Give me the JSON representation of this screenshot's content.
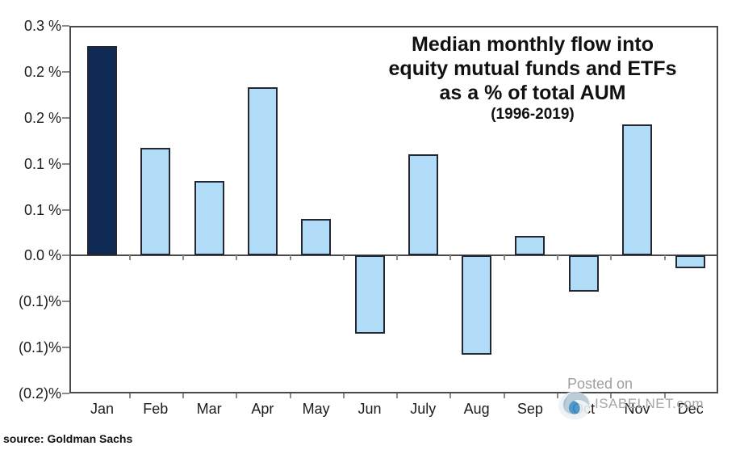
{
  "title": {
    "line1": "Median monthly flow into",
    "line2": "equity mutual funds and ETFs",
    "line3": "as a % of total AUM",
    "line4": "(1996-2019)"
  },
  "watermark": {
    "posted_on": "Posted on",
    "site": "ISABELNET.com",
    "logo": "isabelnet-swirl-logo"
  },
  "source": "source: Goldman Sachs",
  "colors": {
    "highlight_bar": "#0e2a55",
    "bar_fill": "#b0dcf8",
    "bar_border": "#222733",
    "frame": "#4a4a4a",
    "text": "#1c1c1c",
    "watermark_gray": "#a6a6a6"
  },
  "chart_data": {
    "type": "bar",
    "title": "Median monthly flow into equity mutual funds and ETFs as a % of total AUM (1996-2019)",
    "categories": [
      "Jan",
      "Feb",
      "Mar",
      "Apr",
      "May",
      "Jun",
      "July",
      "Aug",
      "Sep",
      "Oct",
      "Nov",
      "Dec"
    ],
    "values": [
      0.228,
      0.117,
      0.081,
      0.183,
      0.04,
      -0.085,
      0.11,
      -0.108,
      0.021,
      -0.039,
      0.143,
      -0.014
    ],
    "highlight_category": "Jan",
    "xlabel": "",
    "ylabel": "",
    "ylim": [
      -0.15,
      0.25
    ],
    "ytick_step": 0.05,
    "ytick_labels_top_to_bottom": [
      "0.3 %",
      "0.2 %",
      "0.2 %",
      "0.1 %",
      "0.1 %",
      "0.0 %",
      "(0.1)%",
      "(0.1)%",
      "(0.2)%"
    ],
    "grid": false,
    "legend": false
  }
}
